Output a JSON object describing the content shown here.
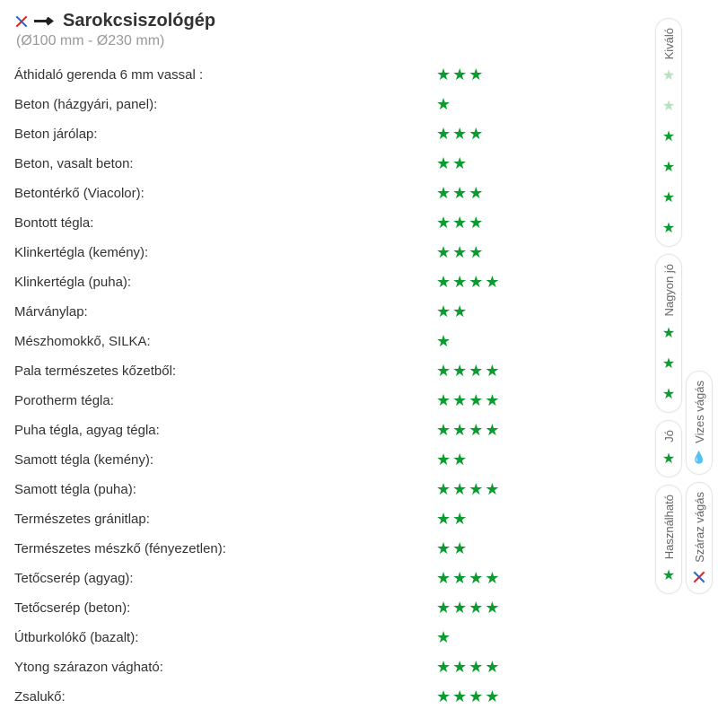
{
  "header": {
    "title": "Sarokcsiszológép",
    "subtitle": "(Ø100 mm - Ø230 mm)"
  },
  "star_color": "#0a9c2f",
  "faded_star_color": "#b8e0c0",
  "rows": [
    {
      "label": "Áthidaló gerenda 6 mm vassal :",
      "stars": 3
    },
    {
      "label": "Beton (házgyári, panel):",
      "stars": 1
    },
    {
      "label": "Beton járólap:",
      "stars": 3
    },
    {
      "label": "Beton, vasalt beton:",
      "stars": 2
    },
    {
      "label": "Betontérkő (Viacolor):",
      "stars": 3
    },
    {
      "label": "Bontott tégla:",
      "stars": 3
    },
    {
      "label": "Klinkertégla (kemény):",
      "stars": 3
    },
    {
      "label": "Klinkertégla (puha):",
      "stars": 4
    },
    {
      "label": "Márványlap:",
      "stars": 2
    },
    {
      "label": "Mészhomokkő, SILKA:",
      "stars": 1
    },
    {
      "label": "Pala természetes kőzetből:",
      "stars": 4
    },
    {
      "label": "Porotherm tégla:",
      "stars": 4
    },
    {
      "label": "Puha tégla, agyag tégla:",
      "stars": 4
    },
    {
      "label": "Samott tégla (kemény):",
      "stars": 2
    },
    {
      "label": "Samott tégla (puha):",
      "stars": 4
    },
    {
      "label": "Természetes gránitlap:",
      "stars": 2
    },
    {
      "label": "Természetes mészkő (fényezetlen):",
      "stars": 2
    },
    {
      "label": "Tetőcserép (agyag):",
      "stars": 4
    },
    {
      "label": "Tetőcserép (beton):",
      "stars": 4
    },
    {
      "label": "Útburkolókő (bazalt):",
      "stars": 1
    },
    {
      "label": "Ytong szárazon vágható:",
      "stars": 4
    },
    {
      "label": "Zsalukő:",
      "stars": 4
    }
  ],
  "side_col_a": [
    {
      "label": "Kiváló",
      "stars": [
        {
          "type": "faded"
        },
        {
          "type": "faded"
        },
        {
          "type": "green"
        },
        {
          "type": "green"
        },
        {
          "type": "green"
        },
        {
          "type": "green"
        }
      ]
    },
    {
      "label": "Nagyon jó",
      "stars": [
        {
          "type": "green"
        },
        {
          "type": "green"
        },
        {
          "type": "green"
        }
      ]
    },
    {
      "label": "Jó",
      "stars": [
        {
          "type": "green"
        }
      ]
    },
    {
      "label": "Használható",
      "stars": [
        {
          "type": "green"
        }
      ],
      "prefix_icon": null
    }
  ],
  "side_col_b": [
    {
      "label": "Vizes vágás",
      "icon": "drop"
    },
    {
      "label": "Száraz vágás",
      "icon": "x"
    }
  ]
}
